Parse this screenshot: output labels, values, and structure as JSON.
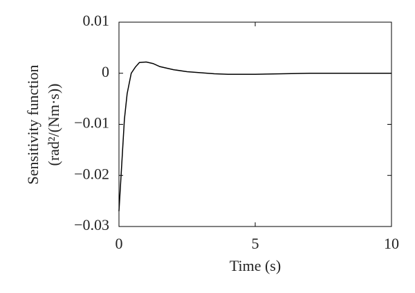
{
  "chart_data": {
    "type": "line",
    "xlabel": "Time (s)",
    "ylabel": [
      "Sensitivity function",
      "(rad²/(Nm·s))"
    ],
    "x": [
      0,
      0.1,
      0.2,
      0.3,
      0.45,
      0.6,
      0.75,
      1.0,
      1.25,
      1.5,
      2,
      2.5,
      3,
      3.5,
      4,
      5,
      6,
      7,
      8,
      9,
      10
    ],
    "series": [
      {
        "color": "#000000",
        "values": [
          -0.027,
          -0.018,
          -0.009,
          -0.004,
          0,
          0.0012,
          0.0021,
          0.0022,
          0.0019,
          0.0013,
          0.0007,
          0.0003,
          0.0001,
          -0.0001,
          -0.0002,
          -0.0002,
          -0.0001,
          0,
          0,
          0,
          0
        ]
      }
    ],
    "xlim": [
      0,
      10
    ],
    "xticks": [
      0,
      5,
      10
    ],
    "ylim": [
      -0.03,
      0.01
    ],
    "yticks": [
      {
        "value": -0.03,
        "label": "−0.03"
      },
      {
        "value": -0.02,
        "label": "−0.02"
      },
      {
        "value": -0.01,
        "label": "−0.01"
      },
      0,
      0.01
    ],
    "grid": false
  }
}
